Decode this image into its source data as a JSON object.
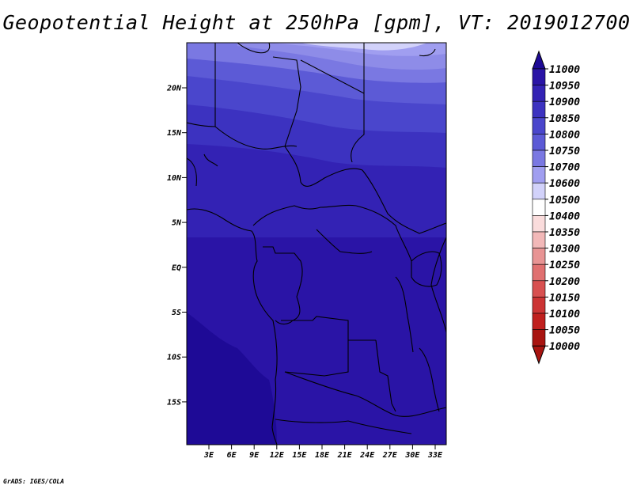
{
  "title": "Geopotential Height at 250hPa [gpm], VT: 2019012700",
  "credit": "GrADS: IGES/COLA",
  "map": {
    "lat_labels": [
      "20N",
      "15N",
      "10N",
      "5N",
      "EQ",
      "5S",
      "10S",
      "15S"
    ],
    "lon_labels": [
      "3E",
      "6E",
      "9E",
      "12E",
      "15E",
      "18E",
      "21E",
      "24E",
      "27E",
      "30E",
      "33E"
    ]
  },
  "colorbar": {
    "levels": [
      "11000",
      "10950",
      "10900",
      "10850",
      "10800",
      "10750",
      "10700",
      "10600",
      "10500",
      "10400",
      "10350",
      "10300",
      "10250",
      "10200",
      "10150",
      "10100",
      "10050",
      "10000"
    ],
    "colors": [
      "#1e0a96",
      "#2a14a6",
      "#3322b4",
      "#3c32c0",
      "#4a46cc",
      "#5c5ad6",
      "#7a78e2",
      "#a09ef0",
      "#d2d2fa",
      "#ffffff",
      "#fadcdc",
      "#f2b8b8",
      "#e89494",
      "#e07070",
      "#d85050",
      "#cc3434",
      "#c0201e",
      "#a81410"
    ]
  }
}
